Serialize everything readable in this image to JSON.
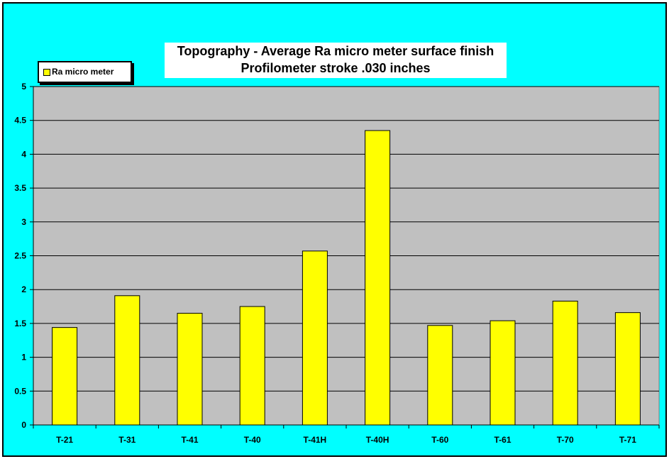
{
  "chart_data": {
    "type": "bar",
    "title": "Topography - Average Ra micro meter surface finish",
    "subtitle": "Profilometer stroke .030 inches",
    "categories": [
      "T-21",
      "T-31",
      "T-41",
      "T-40",
      "T-41H",
      "T-40H",
      "T-60",
      "T-61",
      "T-70",
      "T-71"
    ],
    "series": [
      {
        "name": "Ra micro meter",
        "values": [
          1.44,
          1.91,
          1.65,
          1.75,
          2.57,
          4.35,
          1.47,
          1.54,
          1.83,
          1.66
        ],
        "color": "#ffff00"
      }
    ],
    "ylim": [
      0,
      5
    ],
    "yticks": [
      "0",
      "0.5",
      "1",
      "1.5",
      "2",
      "2.5",
      "3",
      "3.5",
      "4",
      "4.5",
      "5"
    ],
    "xlabel": "",
    "ylabel": "",
    "grid": true,
    "legend_position": "top-left",
    "colors": {
      "background": "#00ffff",
      "plot_area": "#c0c0c0",
      "bar": "#ffff00",
      "title_box": "#ffffff"
    }
  }
}
